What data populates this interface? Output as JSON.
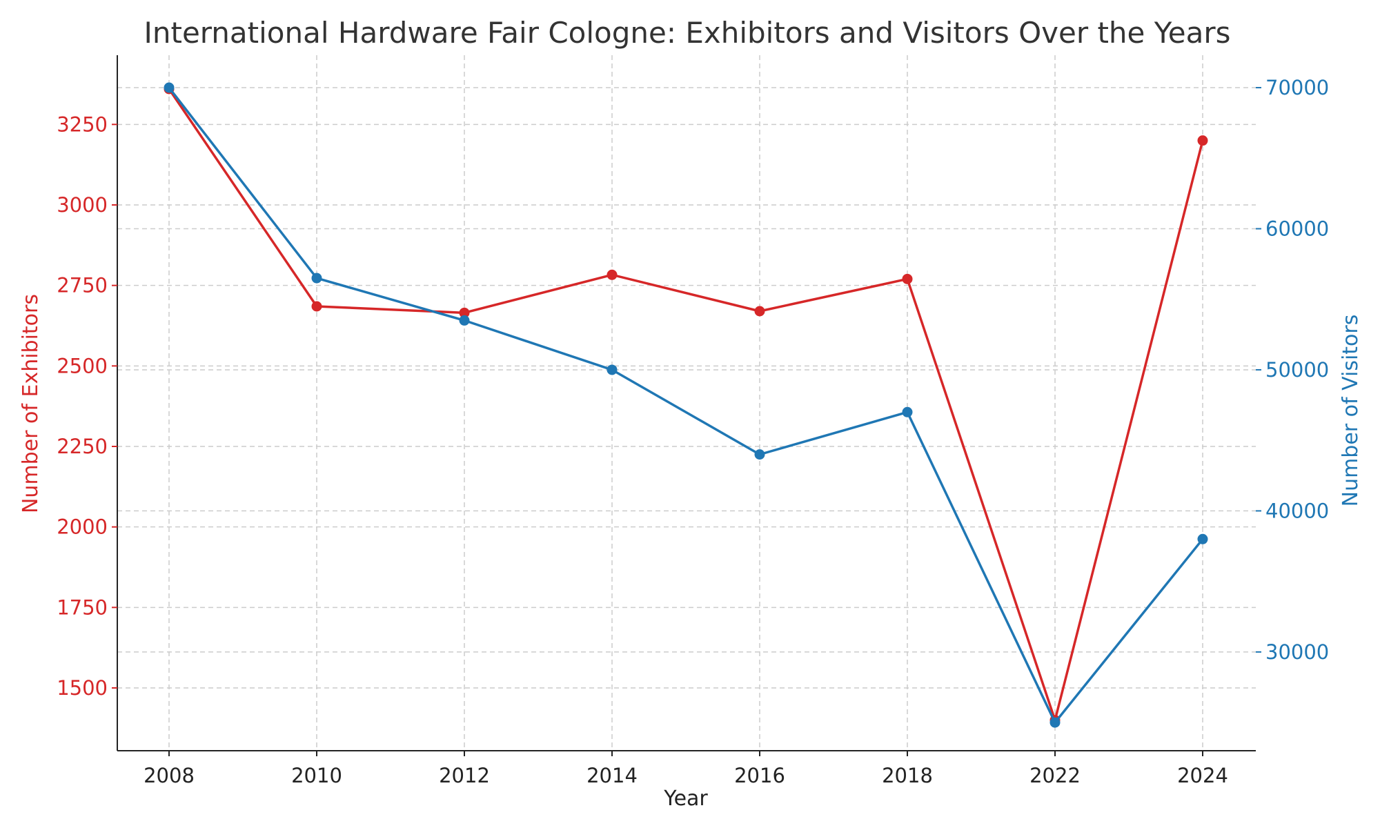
{
  "chart_data": {
    "type": "line",
    "title": "International Hardware Fair Cologne: Exhibitors and Visitors Over the Years",
    "xlabel": "Year",
    "ylabel_left": "Number of Exhibitors",
    "ylabel_right": "Number of Visitors",
    "x": [
      "2008",
      "2010",
      "2012",
      "2014",
      "2016",
      "2018",
      "2022",
      "2024"
    ],
    "series": [
      {
        "name": "Number of Exhibitors",
        "axis": "left",
        "color": "#d62728",
        "values": [
          3360,
          2685,
          2665,
          2783,
          2670,
          2770,
          1400,
          3200
        ]
      },
      {
        "name": "Number of Visitors",
        "axis": "right",
        "color": "#1f77b4",
        "values": [
          70000,
          56500,
          53500,
          50000,
          44000,
          47000,
          25000,
          38000
        ]
      }
    ],
    "ylim_left": [
      1305,
      3465
    ],
    "ylim_right": [
      23000,
      72300
    ],
    "yticks_left": [
      1500,
      1750,
      2000,
      2250,
      2500,
      2750,
      3000,
      3250
    ],
    "yticks_right": [
      30000,
      40000,
      50000,
      60000,
      70000
    ],
    "grid": true,
    "marker": "circle"
  }
}
